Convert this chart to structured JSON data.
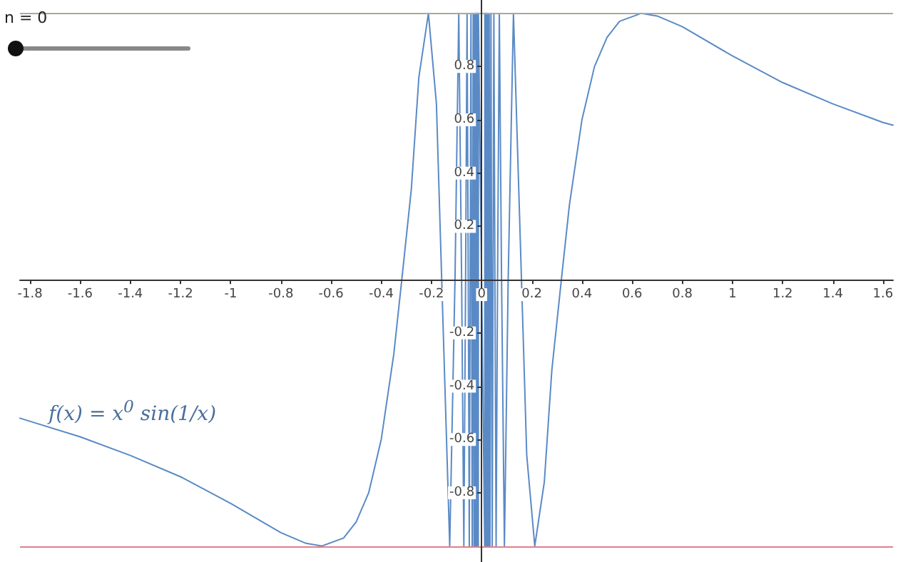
{
  "chart_data": {
    "type": "line",
    "annotations": [
      "n = 0",
      "f(x) = x$^{0}$ sin(1/x)"
    ],
    "series": [
      {
        "color": "#5a8ac6",
        "x": [
          -1.84,
          -1.6,
          -1.4,
          -1.2,
          -1.0,
          -0.8,
          -0.7,
          -0.637,
          -0.55,
          -0.5,
          -0.45,
          -0.4,
          -0.35,
          -0.318,
          -0.28,
          -0.25,
          -0.212,
          -0.18,
          -0.159,
          -0.127,
          -0.106,
          -0.091,
          -0.0796,
          -0.0707,
          -0.0637,
          -0.0579,
          -0.0531,
          -0.049,
          -0.0455,
          -0.0424,
          -0.0398,
          -0.0374,
          -0.0354,
          -0.0335,
          -0.0318,
          -0.0303,
          -0.0277,
          -0.0255,
          -0.0236,
          -0.022,
          -0.0205,
          -0.0193,
          -0.0182,
          -0.0172,
          -0.0163,
          -0.0155,
          -0.0148,
          -0.0141,
          -0.0135,
          -0.013,
          -0.0125,
          0.0125,
          0.013,
          0.0135,
          0.0141,
          0.0148,
          0.0155,
          0.0163,
          0.0172,
          0.0182,
          0.0193,
          0.0205,
          0.022,
          0.0236,
          0.0255,
          0.0277,
          0.0303,
          0.0318,
          0.0335,
          0.0354,
          0.0374,
          0.0398,
          0.0424,
          0.0455,
          0.049,
          0.0531,
          0.0579,
          0.0637,
          0.0707,
          0.0796,
          0.091,
          0.106,
          0.127,
          0.159,
          0.18,
          0.212,
          0.25,
          0.28,
          0.318,
          0.35,
          0.4,
          0.45,
          0.5,
          0.55,
          0.637,
          0.7,
          0.8,
          1.0,
          1.2,
          1.4,
          1.6,
          1.64
        ],
        "values": [
          -0.52,
          -0.59,
          -0.66,
          -0.74,
          -0.84,
          -0.95,
          -0.99,
          -1,
          -0.97,
          -0.91,
          -0.8,
          -0.6,
          -0.28,
          0,
          0.34,
          0.76,
          1,
          0.66,
          0,
          -1,
          0,
          1,
          0,
          -1,
          0,
          1,
          0,
          -1,
          0,
          1,
          0,
          -1,
          0,
          1,
          0,
          -1,
          1,
          -1,
          1,
          -1,
          1,
          -1,
          1,
          -1,
          1,
          -1,
          1,
          -1,
          1,
          -1,
          1,
          -1,
          1,
          -1,
          1,
          -1,
          1,
          -1,
          1,
          -1,
          1,
          -1,
          1,
          -1,
          1,
          -1,
          1,
          0,
          -1,
          0,
          1,
          0,
          -1,
          0,
          1,
          0,
          -1,
          0,
          1,
          0,
          -1,
          0,
          1,
          0,
          -0.66,
          -1,
          -0.76,
          -0.34,
          0,
          0.28,
          0.6,
          0.8,
          0.91,
          0.97,
          1,
          0.99,
          0.95,
          0.84,
          0.74,
          0.66,
          0.59,
          0.58
        ]
      }
    ],
    "xlim": [
      -1.84,
      1.64
    ],
    "ylim": [
      -1.06,
      1.05
    ],
    "xticks": [
      -1.8,
      -1.6,
      -1.4,
      -1.2,
      -1,
      -0.8,
      -0.6,
      -0.4,
      -0.2,
      0,
      0.2,
      0.4,
      0.6,
      0.8,
      1,
      1.2,
      1.4,
      1.6
    ],
    "yticks": [
      -0.8,
      -0.6,
      -0.4,
      -0.2,
      0.2,
      0.4,
      0.6,
      0.8
    ],
    "ref_lines": [
      {
        "axis": "y",
        "value": 1,
        "color": "#a9a99a"
      },
      {
        "axis": "y",
        "value": -1,
        "color": "#e07f8a"
      }
    ],
    "grid": false,
    "marker": "none",
    "line_style": "solid"
  }
}
